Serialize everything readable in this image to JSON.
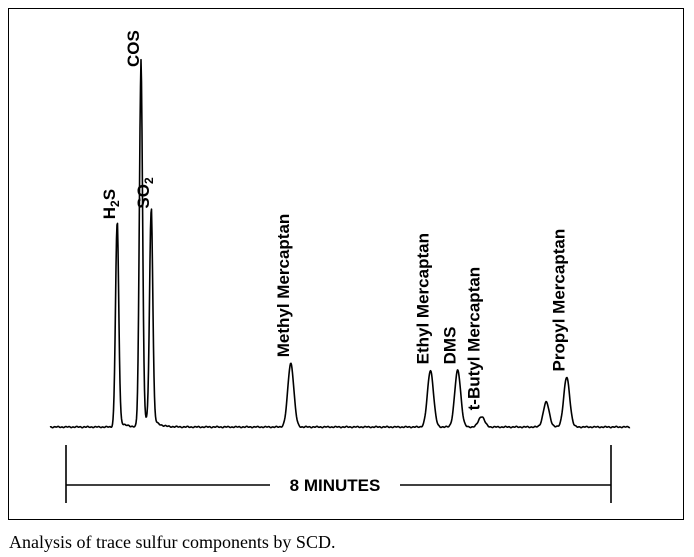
{
  "chart_data": {
    "type": "line",
    "title": "",
    "xlabel": "",
    "ylabel": "",
    "peaks": [
      {
        "name": "H2S",
        "display_main": "H",
        "display_sub": "2",
        "display_tail": "S",
        "time_min": 0.75,
        "height": 0.57
      },
      {
        "name": "COS",
        "time_min": 1.1,
        "height": 1.0
      },
      {
        "name": "SO2",
        "display_main": "SO",
        "display_sub": "2",
        "time_min": 1.25,
        "height": 0.6
      },
      {
        "name": "Methyl Mercaptan",
        "time_min": 3.3,
        "height": 0.18
      },
      {
        "name": "Ethyl Mercaptan",
        "time_min": 5.35,
        "height": 0.16
      },
      {
        "name": "DMS",
        "time_min": 5.75,
        "height": 0.16
      },
      {
        "name": "t-Butyl Mercaptan",
        "time_min": 6.1,
        "height": 0.03
      },
      {
        "name": "",
        "time_min": 7.05,
        "height": 0.07
      },
      {
        "name": "Propyl Mercaptan",
        "time_min": 7.35,
        "height": 0.14
      }
    ],
    "time_span": {
      "label": "8 MINUTES",
      "minutes": 8
    }
  },
  "caption": "Analysis of trace sulfur components by SCD."
}
